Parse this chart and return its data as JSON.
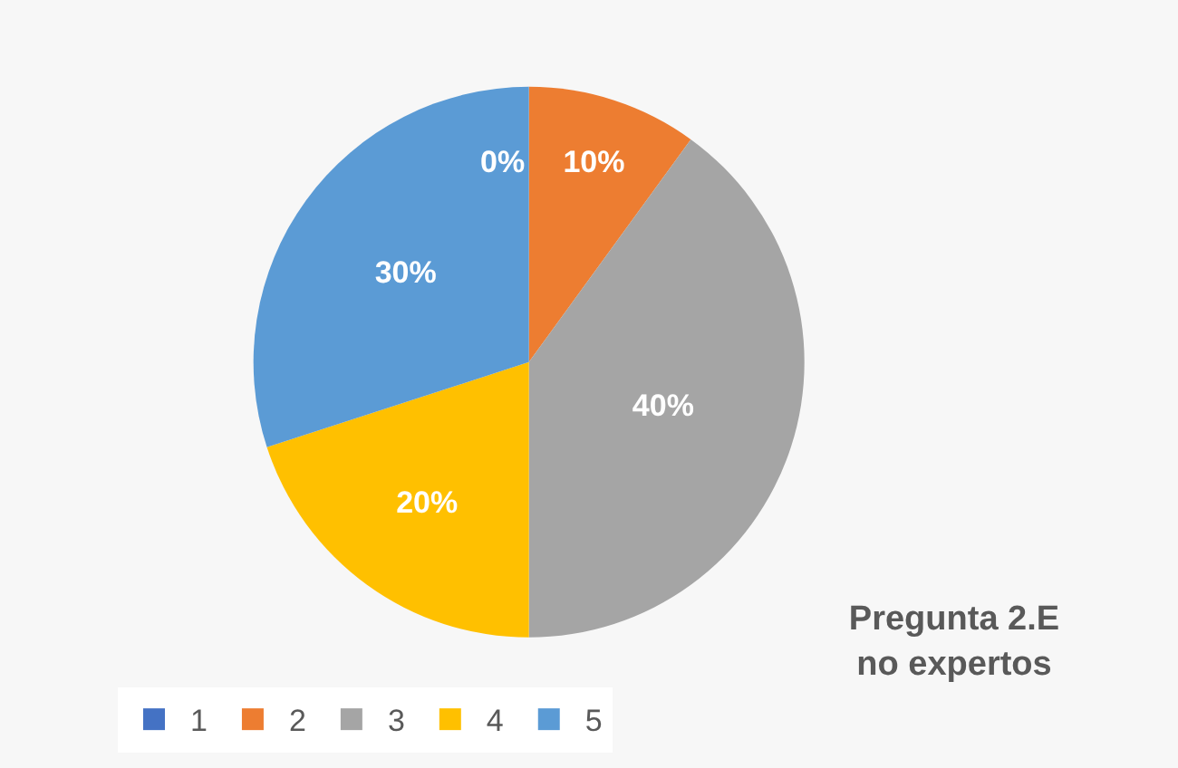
{
  "chart_data": {
    "type": "pie",
    "title": "Pregunta 2.E\nno expertos",
    "categories": [
      "1",
      "2",
      "3",
      "4",
      "5"
    ],
    "values": [
      0,
      10,
      40,
      20,
      30
    ],
    "colors": [
      "#4472c4",
      "#ed7d31",
      "#a5a5a5",
      "#ffc000",
      "#5b9bd5"
    ],
    "value_labels": [
      "0%",
      "10%",
      "40%",
      "20%",
      "30%"
    ],
    "legend": "bottom left"
  }
}
